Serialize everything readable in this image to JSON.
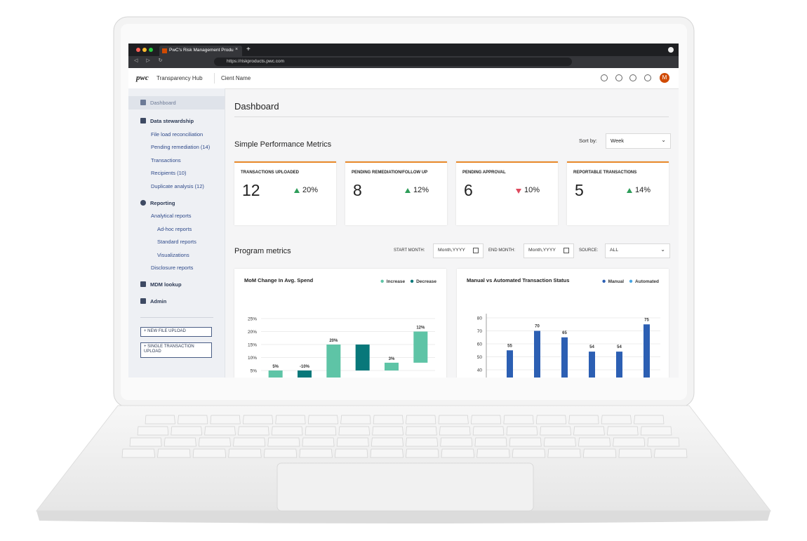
{
  "browser": {
    "tab_title": "PwC's Risk Management Produ",
    "url": "https://riskproducts.pwc.com"
  },
  "header": {
    "logo": "pwc",
    "app_name": "Transparency Hub",
    "client": "Cient Name",
    "avatar": "M"
  },
  "nav": [
    {
      "label": "Dashboard"
    },
    {
      "label": "Data stewardship",
      "items": [
        {
          "label": "File load reconciliation"
        },
        {
          "label": "Pending remediation (14)"
        },
        {
          "label": "Transactions"
        },
        {
          "label": "Recipients (10)"
        },
        {
          "label": "Duplicate analysis (12)"
        }
      ]
    },
    {
      "label": "Reporting",
      "items": [
        {
          "label": "Analytical reports",
          "items": [
            {
              "label": "Ad-hoc reports"
            },
            {
              "label": "Standard reports"
            },
            {
              "label": "Visualizations"
            }
          ]
        },
        {
          "label": "Disclosure reports"
        }
      ]
    },
    {
      "label": "MDM lookup"
    },
    {
      "label": "Admin"
    }
  ],
  "buttons": [
    "+ NEW FILE UPLOAD",
    "+ SINGLE TRANSACTION UPLOAD"
  ],
  "page_title": "Dashboard",
  "metrics": {
    "title": "Simple Performance Metrics",
    "sort_label": "Sort by:",
    "sort_value": "Week",
    "cards": [
      {
        "label": "TRANSACTIONS UPLOADED",
        "value": 12,
        "change": "20%",
        "trend": "up"
      },
      {
        "label": "PENDING REMEDIATION/FOLLOW UP",
        "value": 8,
        "change": "12%",
        "trend": "up"
      },
      {
        "label": "PENDING APPROVAL",
        "value": 6,
        "change": "10%",
        "trend": "down"
      },
      {
        "label": "REPORTABLE TRANSACTIONS",
        "value": 5,
        "change": "14%",
        "trend": "up"
      }
    ]
  },
  "program": {
    "title": "Program metrics",
    "start_label": "START MONTH:",
    "start_value": "Month,YYYY",
    "end_label": "END MONTH:",
    "end_value": "Month,YYYY",
    "source_label": "SOURCE:",
    "source_value": "ALL"
  },
  "charts": [
    {
      "type": "waterfall",
      "title": "MoM Change In Avg. Spend",
      "series": [
        {
          "name": "Increase",
          "color": "#5ec4a6"
        },
        {
          "name": "Decrease",
          "color": "#08787a"
        }
      ],
      "values": [
        5,
        -10,
        20,
        -10,
        3,
        12
      ],
      "value_labels": [
        "5%",
        "-10%",
        "20%",
        null,
        "3%",
        "12%"
      ],
      "ylim": [
        0,
        25
      ],
      "yticks": [
        {
          "value": 25,
          "label": "25%"
        },
        {
          "value": 20,
          "label": "20%"
        },
        {
          "value": 15,
          "label": "15%"
        },
        {
          "value": 10,
          "label": "10%"
        },
        {
          "value": 5,
          "label": "5%"
        }
      ],
      "grid": true
    },
    {
      "type": "bar",
      "title": "Manual vs Automated Transaction Status",
      "ylabel": "Transactions",
      "series": [
        {
          "name": "Manual",
          "color": "#2c5fb3",
          "values": [
            55,
            70,
            65,
            54,
            54,
            75
          ]
        },
        {
          "name": "Automated",
          "color": "#4ba7e3"
        }
      ],
      "ylim": [
        0,
        80
      ],
      "yticks": [
        80,
        70,
        60,
        50,
        40
      ],
      "grid": true
    }
  ]
}
